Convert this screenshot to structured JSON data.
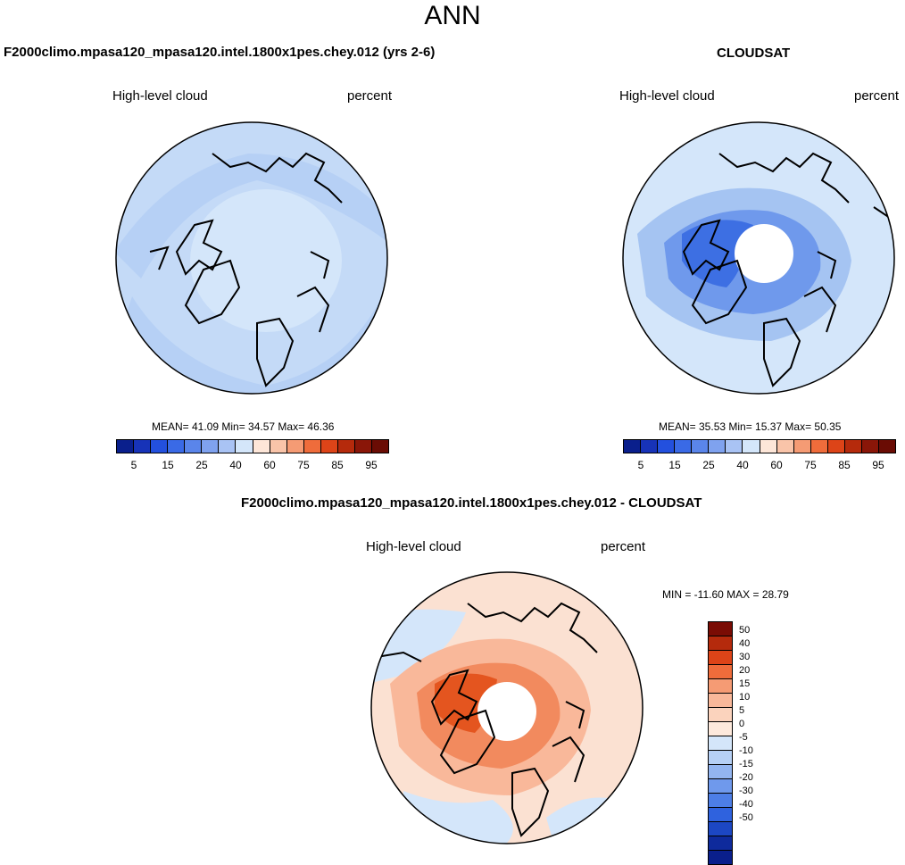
{
  "title": "ANN",
  "panel_left": {
    "title": "F2000climo.mpasa120_mpasa120.intel.1800x1pes.chey.012 (yrs 2-6)",
    "variable": "High-level cloud",
    "units": "percent",
    "stats": "MEAN=  41.09  Min=  34.57  Max=  46.36",
    "bg": "#d4e6fa",
    "band": "#b6d0f5",
    "ring": "#c4daf7"
  },
  "panel_right": {
    "title": "CLOUDSAT",
    "variable": "High-level cloud",
    "units": "percent",
    "stats": "MEAN=  35.53  Min=  15.37  Max=  50.35",
    "bg": "#d4e6fa",
    "band": "#a5c4f2",
    "inner": "#6f99ec",
    "core": "#3d6fe3"
  },
  "panel_diff": {
    "title": "F2000climo.mpasa120_mpasa120.intel.1800x1pes.chey.012 - CLOUDSAT",
    "variable": "High-level cloud",
    "units": "percent",
    "stats": "MIN = -11.60 MAX =  28.79",
    "bg": "#fbe1d2",
    "patch": "#d4e6fa",
    "band": "#f9b89a",
    "inner": "#f28a5e",
    "core": "#e4551f"
  },
  "colorbar_top": {
    "colors": [
      "#0a1f8c",
      "#1733b8",
      "#2350de",
      "#3a6ae6",
      "#5a85ea",
      "#7fa2ef",
      "#a9c3f4",
      "#d4e6fa",
      "#fde6d8",
      "#f9c4a9",
      "#f59b74",
      "#ef6c3b",
      "#dd4418",
      "#b52a0c",
      "#8a1608",
      "#6a0c04"
    ],
    "labels": [
      "5",
      "15",
      "25",
      "40",
      "60",
      "75",
      "85",
      "95"
    ]
  },
  "colorbar_diff": {
    "colors": [
      "#7a0c04",
      "#b52a0c",
      "#dd4418",
      "#ef6c3b",
      "#f59b74",
      "#f9b89a",
      "#fbd3bd",
      "#fde9dc",
      "#d4e6fa",
      "#b6d0f5",
      "#93b5f0",
      "#6f99ec",
      "#4d7ee6",
      "#2f62de",
      "#1c47c4",
      "#0e2a9c",
      "#0a1f8c"
    ],
    "labels": [
      "50",
      "40",
      "30",
      "20",
      "15",
      "10",
      "5",
      "0",
      "-5",
      "-10",
      "-15",
      "-20",
      "-30",
      "-40",
      "-50"
    ]
  }
}
